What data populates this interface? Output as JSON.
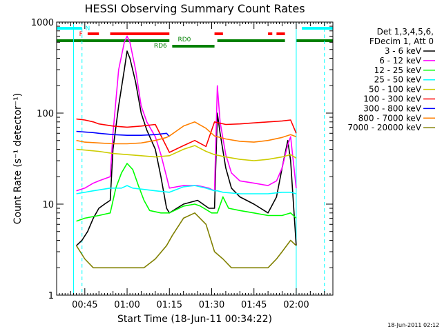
{
  "chart_data": {
    "type": "line",
    "title": "HESSI Observing Summary Count Rates",
    "xlabel": "Start Time (18-Jun-11 00:34:22)",
    "ylabel": "Count Rate (s⁻¹ detector⁻¹)",
    "ylim": [
      1,
      1000
    ],
    "xlim": [
      35.0,
      133.0
    ],
    "yscale": "log",
    "grid": false,
    "legend_position": "right",
    "x_ticks": [
      {
        "value": 45,
        "label": "00:45"
      },
      {
        "value": 60,
        "label": "01:00"
      },
      {
        "value": 75,
        "label": "01:15"
      },
      {
        "value": 90,
        "label": "01:30"
      },
      {
        "value": 105,
        "label": "01:45"
      },
      {
        "value": 120,
        "label": "02:00"
      }
    ],
    "y_ticks": [
      {
        "value": 1,
        "label": "1"
      },
      {
        "value": 10,
        "label": "10"
      },
      {
        "value": 100,
        "label": "100"
      },
      {
        "value": 1000,
        "label": "1000"
      }
    ],
    "legend_header": [
      "Det 1,3,4,5,6,",
      "FDecim 1, Att 0"
    ],
    "timestamp": "18-Jun-2011 02:12",
    "flag_labels": {
      "n": "N",
      "f": "F",
      "rd0": "RD0",
      "rd6": "RD6"
    },
    "series": [
      {
        "name": "3 - 6 keV",
        "color": "#000000",
        "x": [
          42,
          44,
          46,
          48,
          50,
          52,
          54,
          55,
          57,
          59,
          60,
          61,
          63,
          65,
          67,
          70,
          72,
          74,
          75,
          80,
          85,
          89,
          91,
          92,
          93,
          95,
          97,
          100,
          105,
          110,
          113,
          115,
          117,
          118,
          120
        ],
        "y": [
          3.5,
          4,
          5,
          7,
          9,
          10,
          11,
          40,
          120,
          300,
          480,
          400,
          220,
          100,
          65,
          40,
          20,
          9,
          8,
          10,
          11,
          9,
          9,
          100,
          60,
          25,
          15,
          12,
          10,
          8,
          12,
          25,
          50,
          30,
          3.5
        ]
      },
      {
        "name": "6 - 12 keV",
        "color": "#ff00ff",
        "x": [
          42,
          45,
          48,
          50,
          52,
          54,
          55,
          57,
          59,
          60,
          61,
          63,
          65,
          67,
          70,
          72,
          74,
          75,
          80,
          85,
          89,
          91,
          92,
          93,
          95,
          97,
          100,
          105,
          110,
          113,
          115,
          117,
          118,
          120
        ],
        "y": [
          14,
          15,
          17,
          18,
          19,
          20,
          60,
          300,
          600,
          700,
          600,
          300,
          120,
          80,
          55,
          35,
          20,
          15,
          16,
          16,
          15,
          14,
          200,
          80,
          35,
          22,
          18,
          17,
          16,
          18,
          25,
          45,
          55,
          15
        ]
      },
      {
        "name": "12 - 25 keV",
        "color": "#00ff00",
        "x": [
          42,
          45,
          50,
          54,
          56,
          58,
          60,
          62,
          64,
          66,
          68,
          72,
          75,
          80,
          84,
          86,
          90,
          92,
          94,
          96,
          100,
          105,
          110,
          115,
          118,
          120
        ],
        "y": [
          6.5,
          7,
          7.5,
          8,
          15,
          22,
          28,
          24,
          16,
          11,
          8.5,
          8,
          8,
          9.5,
          10,
          9.5,
          8,
          8,
          12,
          9,
          8.5,
          8,
          7.5,
          7.5,
          8,
          7
        ]
      },
      {
        "name": "25 - 50 keV",
        "color": "#00ffff",
        "x": [
          42,
          48,
          54,
          58,
          60,
          62,
          66,
          70,
          75,
          80,
          84,
          88,
          91,
          92,
          94,
          100,
          105,
          110,
          115,
          118,
          120
        ],
        "y": [
          13,
          14,
          15,
          15,
          16,
          15,
          14.5,
          14,
          13.5,
          15.5,
          16,
          15,
          14,
          14,
          13.5,
          13,
          13,
          13,
          13.5,
          13.5,
          13
        ]
      },
      {
        "name": "50 - 100 keV",
        "color": "#cccc00",
        "x": [
          42,
          50,
          55,
          60,
          65,
          70,
          75,
          80,
          84,
          88,
          91,
          95,
          100,
          105,
          110,
          115,
          118,
          120
        ],
        "y": [
          40,
          38,
          36,
          35,
          34,
          33,
          34,
          40,
          44,
          38,
          35,
          33,
          31,
          30,
          31,
          33,
          35,
          32
        ]
      },
      {
        "name": "100 - 300 keV",
        "color": "#ff0000",
        "x": [
          42,
          45,
          48,
          50,
          55,
          60,
          65,
          70,
          75,
          80,
          84,
          88,
          91,
          95,
          100,
          105,
          110,
          115,
          118,
          120
        ],
        "y": [
          86,
          84,
          80,
          76,
          72,
          70,
          72,
          75,
          37,
          44,
          50,
          43,
          80,
          75,
          76,
          78,
          80,
          82,
          84,
          60
        ]
      },
      {
        "name": "300 - 800 keV",
        "color": "#0000ff",
        "x": [
          42,
          45,
          48,
          50,
          55,
          60,
          65,
          70,
          74,
          75
        ],
        "y": [
          63,
          62,
          61,
          60,
          58,
          57,
          57,
          58,
          60,
          55
        ]
      },
      {
        "name": "800 - 7000 keV",
        "color": "#ff8000",
        "x": [
          42,
          45,
          50,
          55,
          60,
          65,
          70,
          74,
          75,
          80,
          84,
          88,
          91,
          95,
          100,
          105,
          110,
          115,
          118,
          120
        ],
        "y": [
          50,
          48,
          47,
          46,
          46,
          47,
          50,
          54,
          56,
          72,
          80,
          68,
          56,
          52,
          49,
          48,
          50,
          54,
          58,
          55
        ]
      },
      {
        "name": "7000 - 20000 keV",
        "color": "#808000",
        "x": [
          42,
          45,
          48,
          50,
          54,
          58,
          62,
          66,
          70,
          74,
          76,
          80,
          84,
          88,
          91,
          94,
          97,
          100,
          105,
          110,
          113,
          115,
          118,
          120
        ],
        "y": [
          3.5,
          2.5,
          2,
          2,
          2,
          2,
          2,
          2,
          2.5,
          3.5,
          4.5,
          7,
          8,
          6,
          3,
          2.5,
          2,
          2,
          2,
          2,
          2.5,
          3,
          4,
          3.5
        ]
      }
    ],
    "flags": [
      {
        "name": "N",
        "color": "#00ffff",
        "segments": [
          [
            35,
            44
          ],
          [
            122,
            133
          ]
        ]
      },
      {
        "name": "F",
        "color": "#ff0000",
        "segments": [
          [
            46,
            50
          ],
          [
            54,
            75
          ],
          [
            91,
            94
          ],
          [
            110,
            111.5
          ],
          [
            113,
            116
          ]
        ]
      },
      {
        "name": "RD0",
        "color": "#008000",
        "segments": [
          [
            35,
            75
          ],
          [
            92,
            116
          ],
          [
            120,
            133
          ]
        ]
      },
      {
        "name": "RD6",
        "color": "#008000",
        "segments": [
          [
            76,
            91
          ]
        ]
      }
    ],
    "annotations": [
      {
        "value": 41,
        "color": "#00ffff",
        "style": "solid"
      },
      {
        "value": 44,
        "color": "#00ffff",
        "style": "dashed"
      },
      {
        "value": 120,
        "color": "#00ffff",
        "style": "solid"
      },
      {
        "value": 130,
        "color": "#00ffff",
        "style": "dashed"
      }
    ]
  }
}
